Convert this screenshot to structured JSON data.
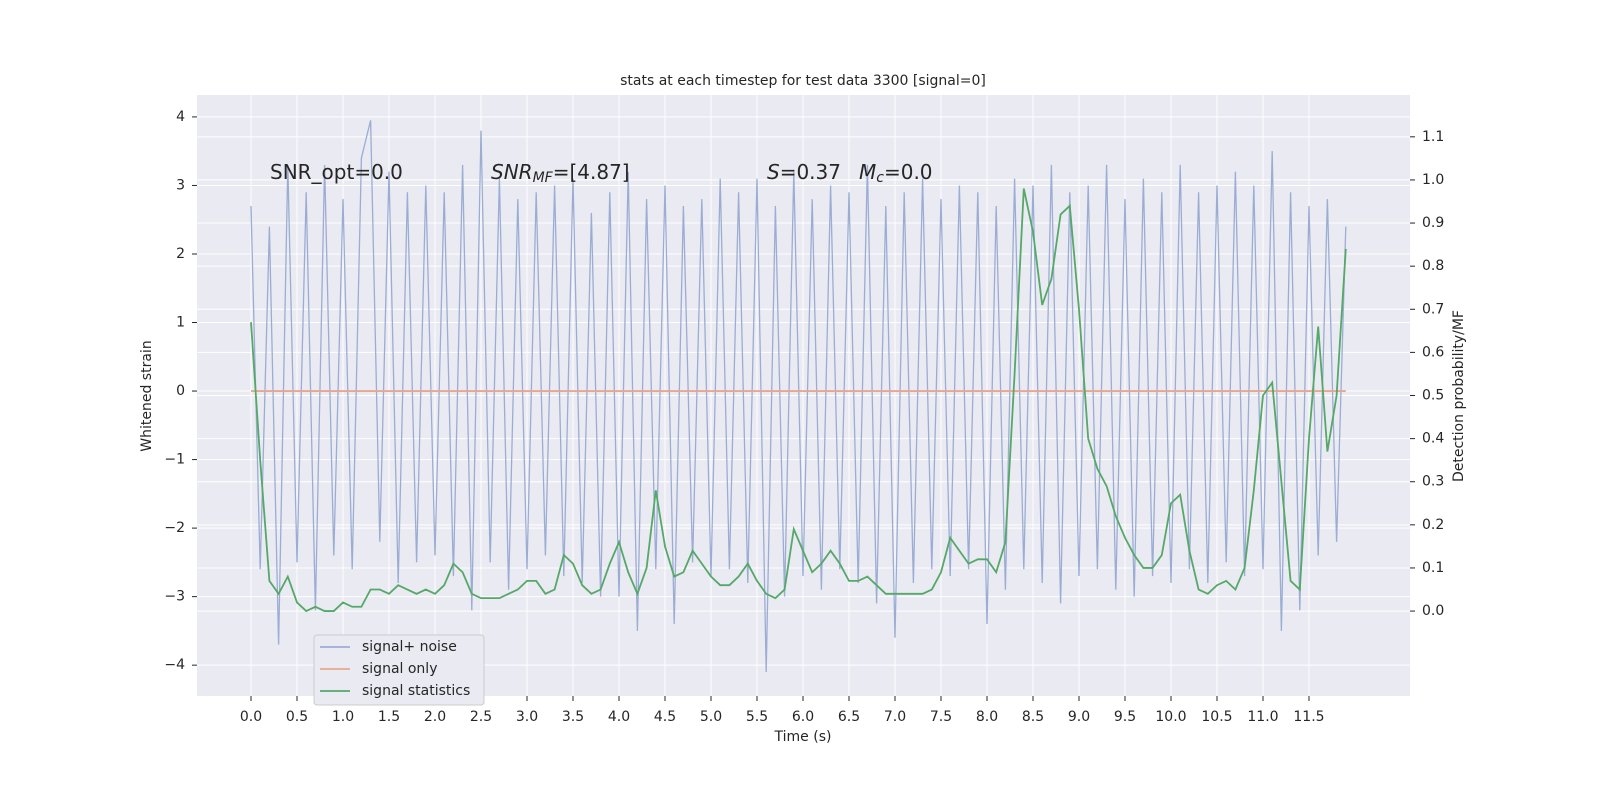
{
  "chart_data": {
    "type": "line",
    "title": "stats at each timestep for test data 3300 [signal=0]",
    "xlabel": "Time (s)",
    "ylabel": "Whitened strain",
    "y2label": "Detection probability/MF",
    "annotations": [
      {
        "parts": [
          {
            "text": "SNR_opt=0.0"
          }
        ]
      },
      {
        "parts": [
          {
            "text": "SNR",
            "style": "italic"
          },
          {
            "text": "MF",
            "style": "italic-sub"
          },
          {
            "text": "=[4.87]"
          }
        ]
      },
      {
        "parts": [
          {
            "text": "S",
            "style": "italic"
          },
          {
            "text": "=0.37"
          }
        ]
      },
      {
        "parts": [
          {
            "text": "M",
            "style": "italic"
          },
          {
            "text": "c",
            "style": "italic-sub"
          },
          {
            "text": "=0.0"
          }
        ]
      }
    ],
    "x": [
      0,
      0.1,
      0.2,
      0.3,
      0.4,
      0.5,
      0.6,
      0.7,
      0.8,
      0.9,
      1,
      1.1,
      1.2,
      1.3,
      1.4,
      1.5,
      1.6,
      1.7,
      1.8,
      1.9,
      2,
      2.1,
      2.2,
      2.3,
      2.4,
      2.5,
      2.6,
      2.7,
      2.8,
      2.9,
      3,
      3.1,
      3.2,
      3.3,
      3.4,
      3.5,
      3.6,
      3.7,
      3.8,
      3.9,
      4,
      4.1,
      4.2,
      4.3,
      4.4,
      4.5,
      4.6,
      4.7,
      4.8,
      4.9,
      5,
      5.1,
      5.2,
      5.3,
      5.4,
      5.5,
      5.6,
      5.7,
      5.8,
      5.9,
      6,
      6.1,
      6.2,
      6.3,
      6.4,
      6.5,
      6.6,
      6.7,
      6.8,
      6.9,
      7,
      7.1,
      7.2,
      7.3,
      7.4,
      7.5,
      7.6,
      7.7,
      7.8,
      7.9,
      8,
      8.1,
      8.2,
      8.3,
      8.4,
      8.5,
      8.6,
      8.7,
      8.8,
      8.9,
      9,
      9.1,
      9.2,
      9.3,
      9.4,
      9.5,
      9.6,
      9.7,
      9.8,
      9.9,
      10,
      10.1,
      10.2,
      10.3,
      10.4,
      10.5,
      10.6,
      10.7,
      10.8,
      10.9,
      11,
      11.1,
      11.2,
      11.3,
      11.4,
      11.5,
      11.6,
      11.7,
      11.8,
      11.9
    ],
    "series": [
      {
        "name": "signal+ noise",
        "color": "#9badd3",
        "axis": "y",
        "values": [
          2.7,
          -2.6,
          2.4,
          -3.7,
          3.3,
          -2.5,
          2.9,
          -3.2,
          3.3,
          -2.4,
          2.8,
          -2.6,
          3.4,
          3.95,
          -2.2,
          3.2,
          -2.8,
          2.9,
          -2.5,
          3.0,
          -2.4,
          2.9,
          -2.7,
          3.3,
          -3.2,
          3.8,
          -2.5,
          3.1,
          -2.9,
          2.8,
          -2.6,
          2.9,
          -2.4,
          3.0,
          -2.7,
          3.1,
          -2.8,
          2.6,
          -3.0,
          2.9,
          -3.0,
          3.2,
          -3.5,
          2.8,
          -2.6,
          3.0,
          -3.4,
          2.7,
          -2.5,
          2.8,
          -2.7,
          3.1,
          -2.6,
          2.9,
          -2.8,
          3.1,
          -4.1,
          2.7,
          -3.0,
          3.2,
          -2.7,
          2.8,
          -2.9,
          3.0,
          -2.6,
          2.9,
          -2.8,
          3.3,
          -3.1,
          2.7,
          -3.6,
          2.9,
          -2.8,
          3.1,
          -2.6,
          2.8,
          -2.7,
          3.0,
          -2.6,
          2.9,
          -3.4,
          2.7,
          -2.9,
          3.1,
          -2.6,
          3.0,
          -2.8,
          3.3,
          -3.1,
          2.9,
          -2.7,
          3.0,
          -2.6,
          3.3,
          -2.9,
          2.8,
          -3.0,
          3.1,
          -2.7,
          2.9,
          -2.8,
          3.3,
          -2.6,
          2.9,
          -2.8,
          3.0,
          -2.5,
          3.2,
          -2.7,
          3.0,
          -2.6,
          3.5,
          -3.5,
          2.9,
          -3.2,
          2.7,
          -2.4,
          2.8,
          -2.2,
          2.4
        ]
      },
      {
        "name": "signal only",
        "color": "#e8a78c",
        "axis": "y",
        "values": [
          0,
          0,
          0,
          0,
          0,
          0,
          0,
          0,
          0,
          0,
          0,
          0,
          0,
          0,
          0,
          0,
          0,
          0,
          0,
          0,
          0,
          0,
          0,
          0,
          0,
          0,
          0,
          0,
          0,
          0,
          0,
          0,
          0,
          0,
          0,
          0,
          0,
          0,
          0,
          0,
          0,
          0,
          0,
          0,
          0,
          0,
          0,
          0,
          0,
          0,
          0,
          0,
          0,
          0,
          0,
          0,
          0,
          0,
          0,
          0,
          0,
          0,
          0,
          0,
          0,
          0,
          0,
          0,
          0,
          0,
          0,
          0,
          0,
          0,
          0,
          0,
          0,
          0,
          0,
          0,
          0,
          0,
          0,
          0,
          0,
          0,
          0,
          0,
          0,
          0,
          0,
          0,
          0,
          0,
          0,
          0,
          0,
          0,
          0,
          0,
          0,
          0,
          0,
          0,
          0,
          0,
          0,
          0,
          0,
          0,
          0,
          0,
          0,
          0,
          0,
          0,
          0,
          0,
          0,
          0
        ]
      },
      {
        "name": "signal statistics",
        "color": "#55a868",
        "axis": "y2",
        "values": [
          0.67,
          0.35,
          0.07,
          0.04,
          0.08,
          0.02,
          0,
          0.01,
          0,
          0,
          0.02,
          0.01,
          0.01,
          0.05,
          0.05,
          0.04,
          0.06,
          0.05,
          0.04,
          0.05,
          0.04,
          0.06,
          0.11,
          0.09,
          0.04,
          0.03,
          0.03,
          0.03,
          0.04,
          0.05,
          0.07,
          0.07,
          0.04,
          0.05,
          0.13,
          0.11,
          0.06,
          0.04,
          0.05,
          0.11,
          0.16,
          0.09,
          0.04,
          0.1,
          0.28,
          0.15,
          0.08,
          0.09,
          0.14,
          0.11,
          0.08,
          0.06,
          0.06,
          0.08,
          0.11,
          0.07,
          0.04,
          0.03,
          0.05,
          0.19,
          0.14,
          0.09,
          0.11,
          0.14,
          0.11,
          0.07,
          0.07,
          0.08,
          0.06,
          0.04,
          0.04,
          0.04,
          0.04,
          0.04,
          0.05,
          0.09,
          0.17,
          0.14,
          0.11,
          0.12,
          0.12,
          0.09,
          0.16,
          0.55,
          0.98,
          0.88,
          0.71,
          0.77,
          0.92,
          0.94,
          0.7,
          0.4,
          0.33,
          0.29,
          0.22,
          0.17,
          0.13,
          0.1,
          0.1,
          0.13,
          0.25,
          0.27,
          0.14,
          0.05,
          0.04,
          0.06,
          0.07,
          0.05,
          0.1,
          0.28,
          0.5,
          0.53,
          0.3,
          0.07,
          0.05,
          0.4,
          0.66,
          0.37,
          0.5,
          0.84
        ]
      }
    ],
    "xlim": [
      -0.587,
      12.598
    ],
    "xticks": [
      {
        "value": 0,
        "label": "0.0"
      },
      0.5,
      {
        "value": 1,
        "label": "1.0"
      },
      1.5,
      {
        "value": 2,
        "label": "2.0"
      },
      2.5,
      {
        "value": 3,
        "label": "3.0"
      },
      3.5,
      {
        "value": 4,
        "label": "4.0"
      },
      4.5,
      {
        "value": 5,
        "label": "5.0"
      },
      5.5,
      {
        "value": 6,
        "label": "6.0"
      },
      6.5,
      {
        "value": 7,
        "label": "7.0"
      },
      7.5,
      {
        "value": 8,
        "label": "8.0"
      },
      8.5,
      {
        "value": 9,
        "label": "9.0"
      },
      9.5,
      {
        "value": 10,
        "label": "10.0"
      },
      10.5,
      {
        "value": 11,
        "label": "11.0"
      },
      11.5
    ],
    "ylim": [
      -4.45,
      4.32
    ],
    "yticks": [
      {
        "value": -4,
        "label": "−4"
      },
      {
        "value": -3,
        "label": "−3"
      },
      {
        "value": -2,
        "label": "−2"
      },
      {
        "value": -1,
        "label": "−1"
      },
      0,
      1,
      2,
      3,
      4
    ],
    "y2lim": [
      -0.197,
      1.197
    ],
    "y2ticks": [
      {
        "value": 0,
        "label": "0.0"
      },
      0.1,
      0.2,
      0.3,
      0.4,
      0.5,
      0.6,
      0.7,
      0.8,
      0.9,
      {
        "value": 1,
        "label": "1.0"
      },
      1.1
    ],
    "grid": true,
    "legend": "lower left"
  }
}
